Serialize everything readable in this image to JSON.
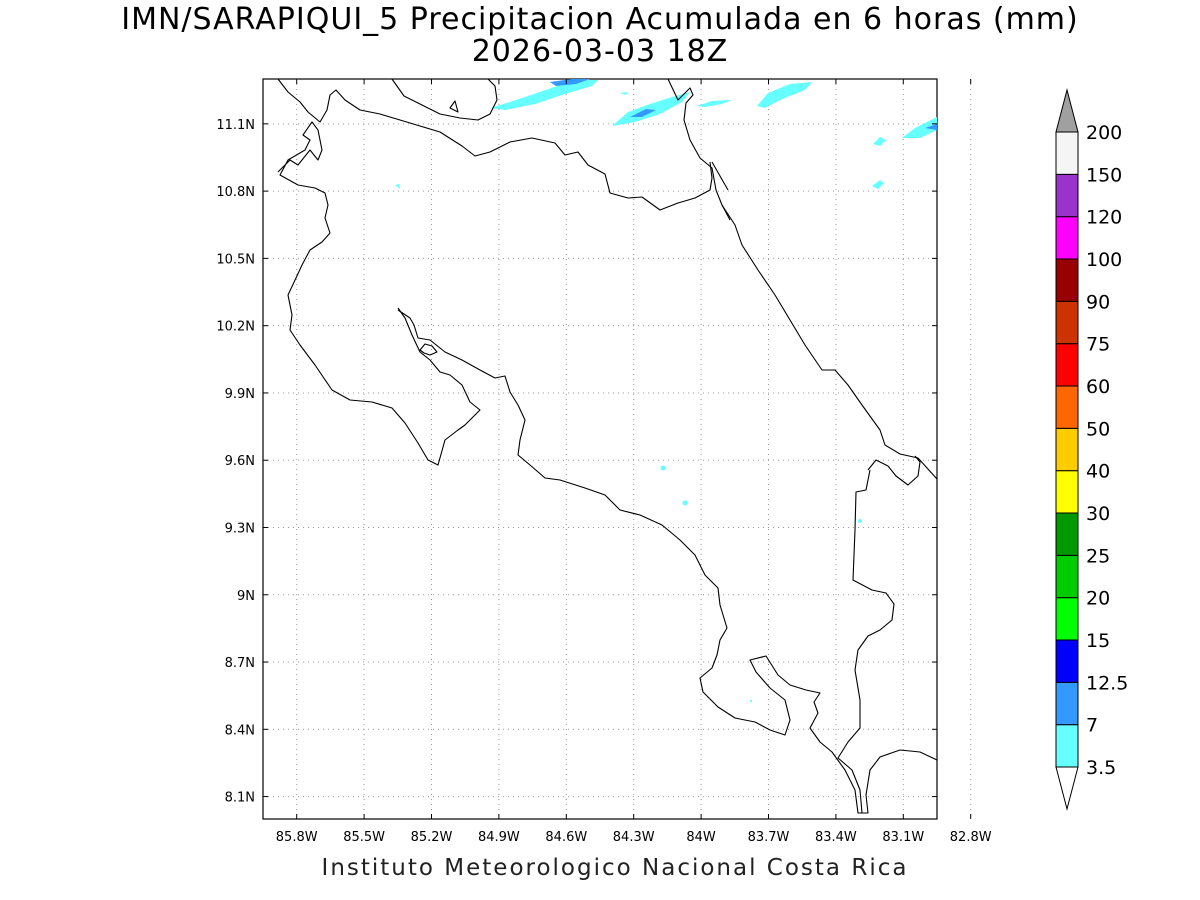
{
  "title_line1": "IMN/SARAPIQUI_5 Precipitacion Acumulada en 6 horas (mm)",
  "title_line2": "2026-03-03 18Z",
  "footer": "Instituto Meteorologico Nacional Costa Rica",
  "map": {
    "lon_range": [
      -85.95,
      -82.95
    ],
    "lat_range": [
      8.0,
      11.3
    ],
    "lon_ticks": [
      "85.8W",
      "85.5W",
      "85.2W",
      "84.9W",
      "84.6W",
      "84.3W",
      "84W",
      "83.7W",
      "83.4W",
      "83.1W",
      "82.8W"
    ],
    "lat_ticks": [
      "11.1N",
      "10.8N",
      "10.5N",
      "10.2N",
      "9.9N",
      "9.6N",
      "9.3N",
      "9N",
      "8.7N",
      "8.4N",
      "8.1N"
    ],
    "grid": true
  },
  "colorbar": {
    "labels": [
      "3.5",
      "7",
      "12.5",
      "15",
      "20",
      "25",
      "30",
      "40",
      "50",
      "60",
      "75",
      "90",
      "100",
      "120",
      "150",
      "200"
    ],
    "colors": [
      "#66ffff",
      "#3399ff",
      "#0000ff",
      "#00ff00",
      "#00cc00",
      "#009900",
      "#ffff00",
      "#ffcc00",
      "#ff6600",
      "#ff0000",
      "#cc3300",
      "#990000",
      "#ff00ff",
      "#9933cc",
      "#f5f5f5",
      "#a0a0a0"
    ]
  }
}
